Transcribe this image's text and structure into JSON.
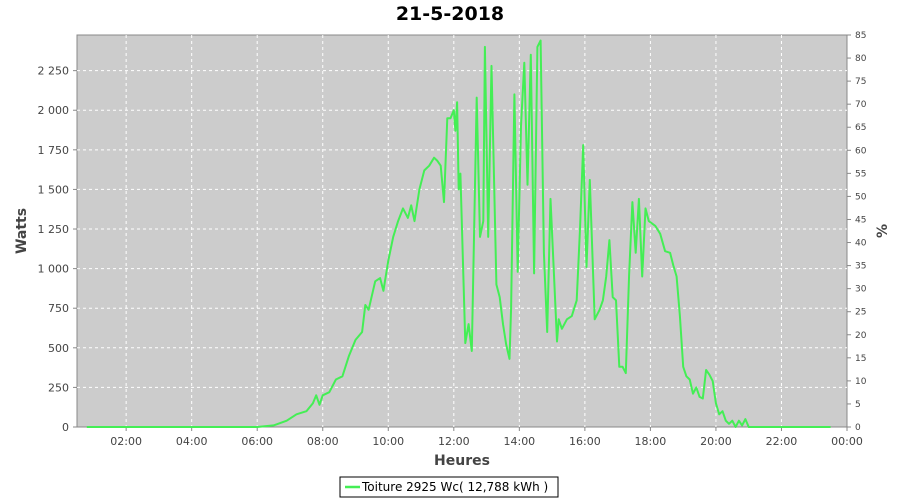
{
  "chart_data": {
    "type": "line",
    "title": "21-5-2018",
    "xlabel": "Heures",
    "ylabel": "Watts",
    "y2label": "%",
    "xlim": [
      0.5,
      24
    ],
    "ylim": [
      0,
      2475
    ],
    "y2lim": [
      0,
      85
    ],
    "grid": true,
    "legend_position": "bottom",
    "x_ticks": [
      {
        "value": 2,
        "label": "02:00"
      },
      {
        "value": 4,
        "label": "04:00"
      },
      {
        "value": 6,
        "label": "06:00"
      },
      {
        "value": 8,
        "label": "08:00"
      },
      {
        "value": 10,
        "label": "10:00"
      },
      {
        "value": 12,
        "label": "12:00"
      },
      {
        "value": 14,
        "label": "14:00"
      },
      {
        "value": 16,
        "label": "16:00"
      },
      {
        "value": 18,
        "label": "18:00"
      },
      {
        "value": 20,
        "label": "20:00"
      },
      {
        "value": 22,
        "label": "22:00"
      },
      {
        "value": 24,
        "label": "00:00"
      }
    ],
    "y_ticks": [
      {
        "value": 0,
        "label": "0"
      },
      {
        "value": 250,
        "label": "250"
      },
      {
        "value": 500,
        "label": "500"
      },
      {
        "value": 750,
        "label": "750"
      },
      {
        "value": 1000,
        "label": "1 000"
      },
      {
        "value": 1250,
        "label": "1 250"
      },
      {
        "value": 1500,
        "label": "1 500"
      },
      {
        "value": 1750,
        "label": "1 750"
      },
      {
        "value": 2000,
        "label": "2 000"
      },
      {
        "value": 2250,
        "label": "2 250"
      }
    ],
    "y2_ticks": [
      "0",
      "5",
      "10",
      "15",
      "20",
      "25",
      "30",
      "35",
      "40",
      "45",
      "50",
      "55",
      "60",
      "65",
      "70",
      "75",
      "80",
      "85"
    ],
    "series": [
      {
        "name": "Toiture 2925 Wc( 12,788 kWh )",
        "color": "#44ee55",
        "points": [
          [
            0.8,
            0
          ],
          [
            6.0,
            0
          ],
          [
            6.5,
            10
          ],
          [
            6.9,
            40
          ],
          [
            7.2,
            80
          ],
          [
            7.5,
            100
          ],
          [
            7.7,
            150
          ],
          [
            7.8,
            200
          ],
          [
            7.9,
            140
          ],
          [
            8.0,
            200
          ],
          [
            8.2,
            220
          ],
          [
            8.4,
            300
          ],
          [
            8.6,
            320
          ],
          [
            8.8,
            450
          ],
          [
            9.0,
            550
          ],
          [
            9.2,
            600
          ],
          [
            9.3,
            770
          ],
          [
            9.4,
            740
          ],
          [
            9.6,
            920
          ],
          [
            9.75,
            940
          ],
          [
            9.85,
            860
          ],
          [
            10.0,
            1050
          ],
          [
            10.15,
            1200
          ],
          [
            10.3,
            1300
          ],
          [
            10.45,
            1380
          ],
          [
            10.6,
            1320
          ],
          [
            10.7,
            1400
          ],
          [
            10.8,
            1300
          ],
          [
            10.95,
            1500
          ],
          [
            11.1,
            1620
          ],
          [
            11.25,
            1650
          ],
          [
            11.4,
            1700
          ],
          [
            11.5,
            1680
          ],
          [
            11.6,
            1650
          ],
          [
            11.7,
            1420
          ],
          [
            11.8,
            1950
          ],
          [
            11.9,
            1950
          ],
          [
            12.0,
            2000
          ],
          [
            12.05,
            1870
          ],
          [
            12.1,
            2050
          ],
          [
            12.15,
            1500
          ],
          [
            12.2,
            1600
          ],
          [
            12.35,
            530
          ],
          [
            12.45,
            650
          ],
          [
            12.55,
            480
          ],
          [
            12.7,
            2080
          ],
          [
            12.8,
            1200
          ],
          [
            12.9,
            1300
          ],
          [
            12.95,
            2400
          ],
          [
            13.05,
            1200
          ],
          [
            13.15,
            2280
          ],
          [
            13.3,
            900
          ],
          [
            13.4,
            820
          ],
          [
            13.5,
            650
          ],
          [
            13.6,
            520
          ],
          [
            13.7,
            430
          ],
          [
            13.75,
            750
          ],
          [
            13.85,
            2100
          ],
          [
            13.95,
            980
          ],
          [
            14.05,
            1900
          ],
          [
            14.15,
            2300
          ],
          [
            14.25,
            1530
          ],
          [
            14.35,
            2350
          ],
          [
            14.45,
            970
          ],
          [
            14.55,
            2400
          ],
          [
            14.65,
            2440
          ],
          [
            14.75,
            1100
          ],
          [
            14.85,
            600
          ],
          [
            14.95,
            1440
          ],
          [
            15.05,
            1000
          ],
          [
            15.15,
            540
          ],
          [
            15.2,
            680
          ],
          [
            15.3,
            620
          ],
          [
            15.45,
            680
          ],
          [
            15.6,
            700
          ],
          [
            15.75,
            800
          ],
          [
            15.85,
            1250
          ],
          [
            15.95,
            1780
          ],
          [
            16.05,
            1010
          ],
          [
            16.15,
            1560
          ],
          [
            16.3,
            680
          ],
          [
            16.45,
            740
          ],
          [
            16.55,
            800
          ],
          [
            16.65,
            950
          ],
          [
            16.75,
            1180
          ],
          [
            16.85,
            820
          ],
          [
            16.95,
            800
          ],
          [
            17.05,
            380
          ],
          [
            17.15,
            380
          ],
          [
            17.25,
            340
          ],
          [
            17.35,
            960
          ],
          [
            17.45,
            1420
          ],
          [
            17.55,
            1100
          ],
          [
            17.65,
            1440
          ],
          [
            17.75,
            950
          ],
          [
            17.85,
            1380
          ],
          [
            17.95,
            1300
          ],
          [
            18.15,
            1270
          ],
          [
            18.3,
            1220
          ],
          [
            18.45,
            1110
          ],
          [
            18.6,
            1100
          ],
          [
            18.7,
            1020
          ],
          [
            18.8,
            950
          ],
          [
            18.9,
            700
          ],
          [
            19.0,
            380
          ],
          [
            19.1,
            320
          ],
          [
            19.2,
            300
          ],
          [
            19.3,
            210
          ],
          [
            19.4,
            250
          ],
          [
            19.5,
            190
          ],
          [
            19.6,
            180
          ],
          [
            19.7,
            360
          ],
          [
            19.8,
            330
          ],
          [
            19.9,
            290
          ],
          [
            20.0,
            150
          ],
          [
            20.1,
            80
          ],
          [
            20.2,
            100
          ],
          [
            20.3,
            40
          ],
          [
            20.4,
            20
          ],
          [
            20.5,
            40
          ],
          [
            20.6,
            0
          ],
          [
            20.7,
            40
          ],
          [
            20.8,
            10
          ],
          [
            20.9,
            50
          ],
          [
            21.0,
            0
          ],
          [
            21.5,
            0
          ],
          [
            23.5,
            0
          ]
        ]
      }
    ]
  }
}
